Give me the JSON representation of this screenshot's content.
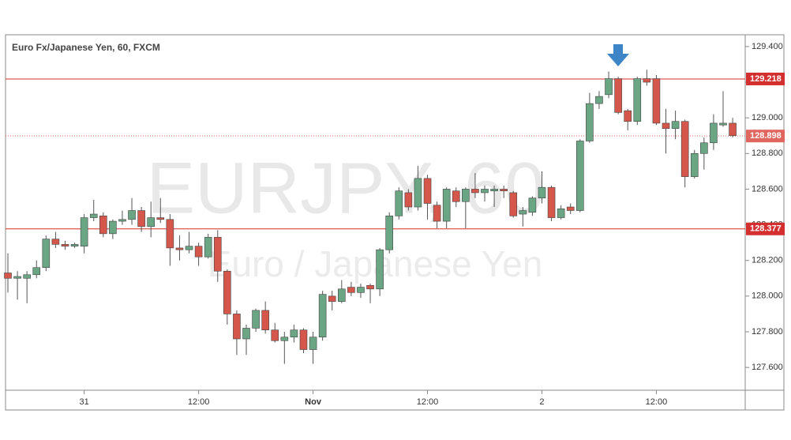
{
  "chart_data": {
    "type": "candlestick",
    "title": "Euro Fx/Japanese Yen, 60, FXCM",
    "watermark": {
      "symbol": "EURJPY, 60",
      "description": "Euro / Japanese Yen"
    },
    "categories": [
      null,
      null,
      null,
      null,
      null,
      null,
      null,
      null,
      "31",
      null,
      null,
      null,
      null,
      null,
      null,
      null,
      null,
      null,
      null,
      null,
      "12:00",
      null,
      null,
      null,
      null,
      null,
      null,
      null,
      null,
      null,
      null,
      null,
      "Nov",
      null,
      null,
      null,
      null,
      null,
      null,
      null,
      null,
      null,
      null,
      null,
      "12:00",
      null,
      null,
      null,
      null,
      null,
      null,
      null,
      null,
      null,
      null,
      null,
      "2",
      null,
      null,
      null,
      null,
      null,
      null,
      null,
      null,
      null,
      null,
      null,
      "12:00",
      null,
      null,
      null,
      null,
      null,
      null,
      null,
      null
    ],
    "open": [
      128.13,
      128.1,
      128.1,
      128.12,
      128.16,
      128.32,
      128.29,
      128.28,
      128.28,
      128.44,
      128.45,
      128.35,
      128.42,
      128.43,
      128.48,
      128.39,
      128.44,
      128.43,
      128.27,
      128.26,
      128.28,
      128.22,
      128.33,
      128.14,
      127.9,
      127.76,
      127.82,
      127.92,
      127.81,
      127.75,
      127.77,
      127.81,
      127.7,
      127.77,
      128.0,
      127.97,
      128.05,
      128.02,
      128.06,
      128.04,
      128.26,
      128.45,
      128.58,
      128.5,
      128.66,
      128.51,
      128.42,
      128.59,
      128.53,
      128.6,
      128.58,
      128.59,
      128.6,
      128.58,
      128.46,
      128.47,
      128.55,
      128.61,
      128.44,
      128.5,
      128.48,
      128.87,
      129.08,
      129.13,
      129.22,
      129.04,
      128.98,
      129.22,
      129.22,
      128.97,
      128.94,
      128.98,
      128.67,
      128.8,
      128.86,
      128.96,
      128.97
    ],
    "high": [
      128.24,
      128.14,
      128.14,
      128.2,
      128.34,
      128.36,
      128.31,
      128.3,
      128.46,
      128.54,
      128.47,
      128.43,
      128.48,
      128.55,
      128.5,
      128.53,
      128.55,
      128.46,
      128.34,
      128.36,
      128.3,
      128.35,
      128.37,
      128.15,
      127.92,
      127.84,
      127.93,
      127.97,
      127.85,
      127.8,
      127.84,
      127.82,
      127.8,
      128.03,
      128.03,
      128.09,
      128.08,
      128.07,
      128.07,
      128.27,
      128.47,
      128.61,
      128.6,
      128.73,
      128.68,
      128.53,
      128.61,
      128.61,
      128.61,
      128.69,
      128.62,
      128.62,
      128.62,
      128.59,
      128.5,
      128.56,
      128.7,
      128.62,
      128.51,
      128.52,
      128.88,
      129.14,
      129.15,
      129.26,
      129.23,
      129.05,
      129.23,
      129.27,
      129.24,
      129.05,
      129.04,
      128.99,
      128.82,
      128.89,
      129.02,
      129.15,
      129.0
    ],
    "low": [
      128.02,
      127.98,
      127.96,
      128.1,
      128.14,
      128.27,
      128.26,
      128.27,
      128.24,
      128.42,
      128.33,
      128.32,
      128.4,
      128.4,
      128.36,
      128.33,
      128.41,
      128.17,
      128.2,
      128.24,
      128.17,
      128.21,
      128.08,
      127.84,
      127.67,
      127.67,
      127.8,
      127.79,
      127.74,
      127.62,
      127.74,
      127.68,
      127.62,
      127.75,
      127.92,
      127.96,
      128.0,
      127.99,
      127.96,
      128.0,
      128.24,
      128.43,
      128.48,
      128.48,
      128.43,
      128.38,
      128.38,
      128.5,
      128.38,
      128.55,
      128.53,
      128.5,
      128.55,
      128.44,
      128.39,
      128.45,
      128.52,
      128.42,
      128.43,
      128.46,
      128.47,
      128.86,
      129.05,
      129.11,
      129.02,
      128.93,
      128.96,
      129.18,
      128.96,
      128.8,
      128.88,
      128.61,
      128.66,
      128.71,
      128.82,
      128.95,
      128.89
    ],
    "close": [
      128.1,
      128.11,
      128.12,
      128.16,
      128.32,
      128.29,
      128.28,
      128.29,
      128.44,
      128.46,
      128.35,
      128.42,
      128.43,
      128.48,
      128.39,
      128.44,
      128.43,
      128.27,
      128.26,
      128.28,
      128.22,
      128.33,
      128.14,
      127.9,
      127.76,
      127.82,
      127.92,
      127.81,
      127.75,
      127.77,
      127.81,
      127.7,
      127.77,
      128.01,
      127.97,
      128.04,
      128.02,
      128.05,
      128.04,
      128.26,
      128.45,
      128.59,
      128.5,
      128.66,
      128.52,
      128.42,
      128.6,
      128.53,
      128.6,
      128.58,
      128.6,
      128.6,
      128.59,
      128.45,
      128.48,
      128.55,
      128.61,
      128.44,
      128.49,
      128.48,
      128.87,
      129.08,
      129.12,
      129.22,
      129.03,
      128.98,
      129.22,
      129.2,
      128.97,
      128.94,
      128.98,
      128.67,
      128.8,
      128.86,
      128.97,
      128.97,
      128.9
    ],
    "up_color": "#6aa584",
    "down_color": "#d5564a",
    "ylim": [
      127.472,
      129.466
    ],
    "yticks": [
      {
        "value": 127.6,
        "label": "127.600"
      },
      {
        "value": 127.8,
        "label": "127.800"
      },
      {
        "value": 128.0,
        "label": "128.000"
      },
      {
        "value": 128.2,
        "label": "128.200"
      },
      {
        "value": 128.4,
        "label": "128.400"
      },
      {
        "value": 128.6,
        "label": "128.600"
      },
      {
        "value": 128.8,
        "label": "128.800"
      },
      {
        "value": 129.0,
        "label": "129.000"
      },
      {
        "value": 129.2,
        "label": "129.200"
      },
      {
        "value": 129.4,
        "label": "129.400"
      }
    ],
    "levels": [
      129.218,
      128.377
    ],
    "level_color": "#d32f2f",
    "last_price": 128.898,
    "last_price_color": "#e0675f",
    "grid": false
  }
}
